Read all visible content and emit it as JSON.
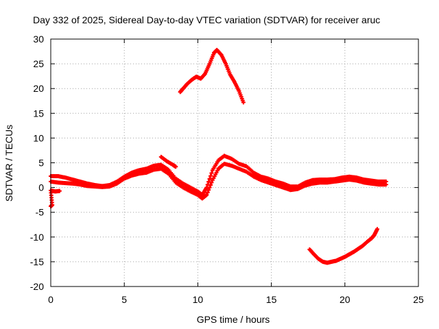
{
  "chart_data": {
    "type": "scatter",
    "title": "Day 332 of 2025, Sidereal Day-to-day VTEC variation (SDTVAR) for receiver aruc",
    "xlabel": "GPS time / hours",
    "ylabel": "SDTVAR / TECUs",
    "xlim": [
      0,
      25
    ],
    "ylim": [
      -20,
      30
    ],
    "xticks": [
      0,
      5,
      10,
      15,
      20,
      25
    ],
    "yticks": [
      30,
      25,
      20,
      15,
      10,
      5,
      0,
      -5,
      -10,
      -15,
      -20
    ],
    "grid": true,
    "series": [
      {
        "name": "main-upper-band",
        "color": "#ff0000",
        "points": [
          [
            0.0,
            2.3
          ],
          [
            0.5,
            2.3
          ],
          [
            1.0,
            2.0
          ],
          [
            1.5,
            1.6
          ],
          [
            2.0,
            1.2
          ],
          [
            2.5,
            0.8
          ],
          [
            3.0,
            0.5
          ],
          [
            3.5,
            0.3
          ],
          [
            4.0,
            0.5
          ],
          [
            4.5,
            1.2
          ],
          [
            5.0,
            2.2
          ],
          [
            5.5,
            3.0
          ],
          [
            6.0,
            3.5
          ],
          [
            6.5,
            3.8
          ],
          [
            7.0,
            4.4
          ],
          [
            7.5,
            4.6
          ],
          [
            8.0,
            3.6
          ],
          [
            8.5,
            1.8
          ],
          [
            9.0,
            0.8
          ],
          [
            9.5,
            0.0
          ],
          [
            10.0,
            -0.8
          ],
          [
            10.3,
            -1.5
          ],
          [
            10.6,
            0.0
          ],
          [
            11.0,
            3.5
          ],
          [
            11.4,
            5.5
          ],
          [
            11.8,
            6.4
          ],
          [
            12.3,
            5.8
          ],
          [
            12.8,
            4.8
          ],
          [
            13.3,
            4.3
          ],
          [
            13.8,
            3.0
          ],
          [
            14.3,
            2.2
          ],
          [
            14.8,
            1.8
          ],
          [
            15.3,
            1.2
          ],
          [
            15.8,
            0.8
          ],
          [
            16.3,
            0.2
          ],
          [
            16.8,
            0.2
          ],
          [
            17.3,
            1.0
          ],
          [
            17.8,
            1.5
          ],
          [
            18.3,
            1.6
          ],
          [
            18.8,
            1.6
          ],
          [
            19.3,
            1.7
          ],
          [
            19.8,
            2.0
          ],
          [
            20.3,
            2.2
          ],
          [
            20.8,
            2.0
          ],
          [
            21.3,
            1.6
          ],
          [
            21.8,
            1.4
          ],
          [
            22.3,
            1.2
          ],
          [
            22.8,
            1.2
          ]
        ]
      },
      {
        "name": "main-lower-band",
        "color": "#ff0000",
        "points": [
          [
            0.0,
            1.2
          ],
          [
            0.5,
            1.0
          ],
          [
            1.0,
            0.9
          ],
          [
            1.5,
            0.8
          ],
          [
            2.0,
            0.6
          ],
          [
            2.5,
            0.3
          ],
          [
            3.0,
            0.2
          ],
          [
            3.5,
            0.1
          ],
          [
            4.0,
            0.2
          ],
          [
            4.5,
            0.8
          ],
          [
            5.0,
            1.8
          ],
          [
            5.5,
            2.4
          ],
          [
            6.0,
            2.8
          ],
          [
            6.5,
            3.0
          ],
          [
            7.0,
            3.6
          ],
          [
            7.5,
            3.8
          ],
          [
            8.0,
            2.8
          ],
          [
            8.5,
            1.0
          ],
          [
            9.0,
            0.0
          ],
          [
            9.5,
            -0.8
          ],
          [
            10.0,
            -1.5
          ],
          [
            10.3,
            -2.2
          ],
          [
            10.6,
            -1.5
          ],
          [
            11.0,
            1.5
          ],
          [
            11.4,
            3.8
          ],
          [
            11.8,
            4.8
          ],
          [
            12.3,
            4.4
          ],
          [
            12.8,
            3.8
          ],
          [
            13.3,
            3.2
          ],
          [
            13.8,
            2.2
          ],
          [
            14.3,
            1.5
          ],
          [
            14.8,
            1.0
          ],
          [
            15.3,
            0.5
          ],
          [
            15.8,
            0.0
          ],
          [
            16.3,
            -0.5
          ],
          [
            16.8,
            -0.3
          ],
          [
            17.3,
            0.4
          ],
          [
            17.8,
            0.8
          ],
          [
            18.3,
            1.0
          ],
          [
            18.8,
            1.0
          ],
          [
            19.3,
            1.2
          ],
          [
            19.8,
            1.4
          ],
          [
            20.3,
            1.6
          ],
          [
            20.8,
            1.4
          ],
          [
            21.3,
            1.0
          ],
          [
            21.8,
            0.8
          ],
          [
            22.3,
            0.6
          ],
          [
            22.8,
            0.6
          ]
        ]
      },
      {
        "name": "small-segments",
        "color": "#ff0000",
        "points": [
          [
            0.0,
            -3.8
          ],
          [
            0.1,
            -3.5
          ],
          [
            0.0,
            -0.6
          ],
          [
            0.3,
            -0.8
          ],
          [
            0.6,
            -0.7
          ],
          [
            7.5,
            6.2
          ],
          [
            7.9,
            5.3
          ],
          [
            8.3,
            4.6
          ],
          [
            8.5,
            4.2
          ]
        ]
      },
      {
        "name": "high-arc",
        "color": "#ff0000",
        "points": [
          [
            8.8,
            19.3
          ],
          [
            9.0,
            20.0
          ],
          [
            9.3,
            21.0
          ],
          [
            9.6,
            21.8
          ],
          [
            9.9,
            22.4
          ],
          [
            10.2,
            22.0
          ],
          [
            10.5,
            23.0
          ],
          [
            10.8,
            25.0
          ],
          [
            11.1,
            27.2
          ],
          [
            11.3,
            27.8
          ],
          [
            11.6,
            26.8
          ],
          [
            11.9,
            25.0
          ],
          [
            12.2,
            22.8
          ],
          [
            12.5,
            21.3
          ],
          [
            12.8,
            19.5
          ],
          [
            13.1,
            17.2
          ]
        ]
      },
      {
        "name": "low-arc",
        "color": "#ff0000",
        "points": [
          [
            17.6,
            -12.5
          ],
          [
            17.9,
            -13.5
          ],
          [
            18.2,
            -14.4
          ],
          [
            18.5,
            -15.0
          ],
          [
            18.8,
            -15.2
          ],
          [
            19.1,
            -15.0
          ],
          [
            19.4,
            -14.8
          ],
          [
            19.7,
            -14.4
          ],
          [
            20.0,
            -14.0
          ],
          [
            20.3,
            -13.5
          ],
          [
            20.6,
            -13.0
          ],
          [
            20.9,
            -12.4
          ],
          [
            21.2,
            -11.8
          ],
          [
            21.5,
            -11.0
          ],
          [
            21.8,
            -10.3
          ],
          [
            22.0,
            -9.6
          ],
          [
            22.2,
            -8.4
          ]
        ]
      }
    ]
  }
}
